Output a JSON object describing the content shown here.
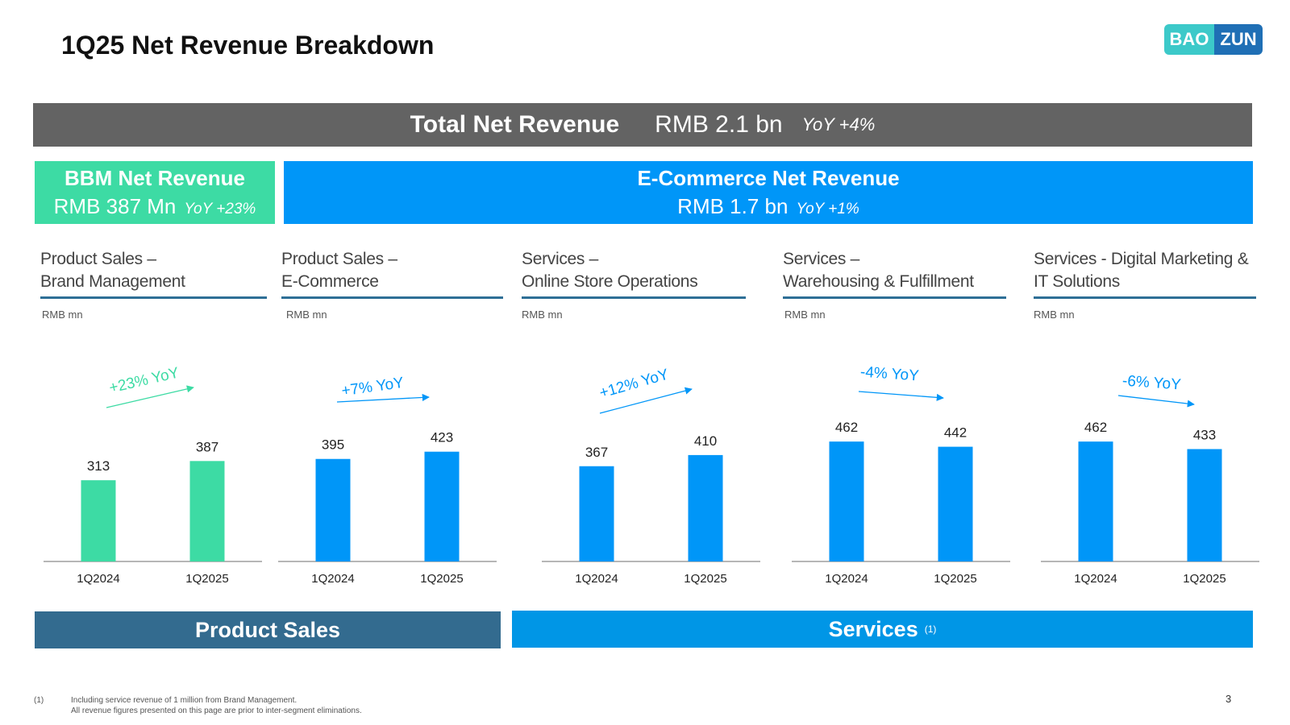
{
  "title": "1Q25 Net Revenue Breakdown",
  "logo": {
    "left": "BAO",
    "right": "ZUN"
  },
  "total": {
    "label": "Total Net Revenue",
    "value": "RMB 2.1 bn",
    "yoy": "YoY +4%"
  },
  "bbm": {
    "title": "BBM Net Revenue",
    "value": "RMB 387 Mn",
    "yoy": "YoY +23%"
  },
  "ecommerce": {
    "title": "E-Commerce Net Revenue",
    "value": "RMB 1.7 bn",
    "yoy": "YoY +1%"
  },
  "unit_label": "RMB mn",
  "colors": {
    "bbm": "#3ddba4",
    "ecommerce": "#0096f8",
    "product_sales": "#336b8f",
    "services": "#0096e6",
    "total": "#636363"
  },
  "chart_data": [
    {
      "type": "bar",
      "title_line1": "Product Sales –",
      "title_line2": "Brand Management",
      "unit": "RMB mn",
      "categories": [
        "1Q2024",
        "1Q2025"
      ],
      "values": [
        313,
        387
      ],
      "yoy": "+23% YoY",
      "color": "#3ddba4"
    },
    {
      "type": "bar",
      "title_line1": "Product Sales –",
      "title_line2": "E-Commerce",
      "unit": "RMB mn",
      "categories": [
        "1Q2024",
        "1Q2025"
      ],
      "values": [
        395,
        423
      ],
      "yoy": "+7% YoY",
      "color": "#0096f8"
    },
    {
      "type": "bar",
      "title_line1": "Services –",
      "title_line2": "Online Store Operations",
      "unit": "RMB mn",
      "categories": [
        "1Q2024",
        "1Q2025"
      ],
      "values": [
        367,
        410
      ],
      "yoy": "+12% YoY",
      "color": "#0096f8"
    },
    {
      "type": "bar",
      "title_line1": "Services –",
      "title_line2": "Warehousing & Fulfillment",
      "unit": "RMB mn",
      "categories": [
        "1Q2024",
        "1Q2025"
      ],
      "values": [
        462,
        442
      ],
      "yoy": "-4% YoY",
      "color": "#0096f8"
    },
    {
      "type": "bar",
      "title_line1": "Services - Digital Marketing &",
      "title_line2": "IT Solutions",
      "unit": "RMB mn",
      "categories": [
        "1Q2024",
        "1Q2025"
      ],
      "values": [
        462,
        433
      ],
      "yoy": "-6% YoY",
      "color": "#0096f8"
    }
  ],
  "bottom": {
    "product_sales": "Product Sales",
    "services": "Services",
    "services_note": "(1)"
  },
  "footnote": {
    "number": "(1)",
    "line1": "Including service revenue of 1 million from Brand Management.",
    "line2": "All revenue figures presented on this page are prior to inter-segment eliminations."
  },
  "page_number": "3"
}
